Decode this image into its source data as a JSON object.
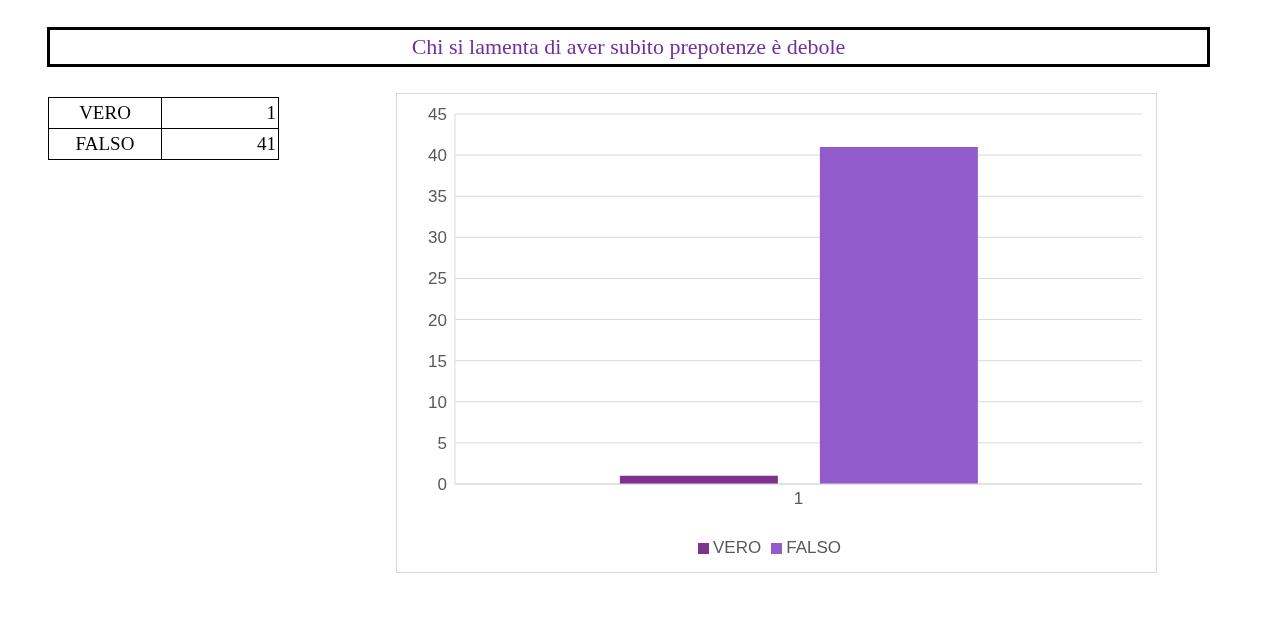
{
  "chart_data": [
    {
      "type": "other",
      "categories": [
        "VERO",
        "FALSO"
      ],
      "values": [
        1,
        41
      ],
      "data_labels": true
    },
    {
      "type": "bar",
      "title": "Chi si lamenta di aver subito prepotenze è debole",
      "categories": [
        "1"
      ],
      "series": [
        {
          "name": "VERO",
          "color": "#7e3191",
          "values": [
            1
          ]
        },
        {
          "name": "FALSO",
          "color": "#915bcc",
          "values": [
            41
          ]
        }
      ],
      "ylim": [
        0,
        45
      ],
      "yticks": [
        0,
        5,
        10,
        15,
        20,
        25,
        30,
        35,
        40,
        45
      ],
      "grid": "y",
      "legend": "bottom"
    }
  ]
}
